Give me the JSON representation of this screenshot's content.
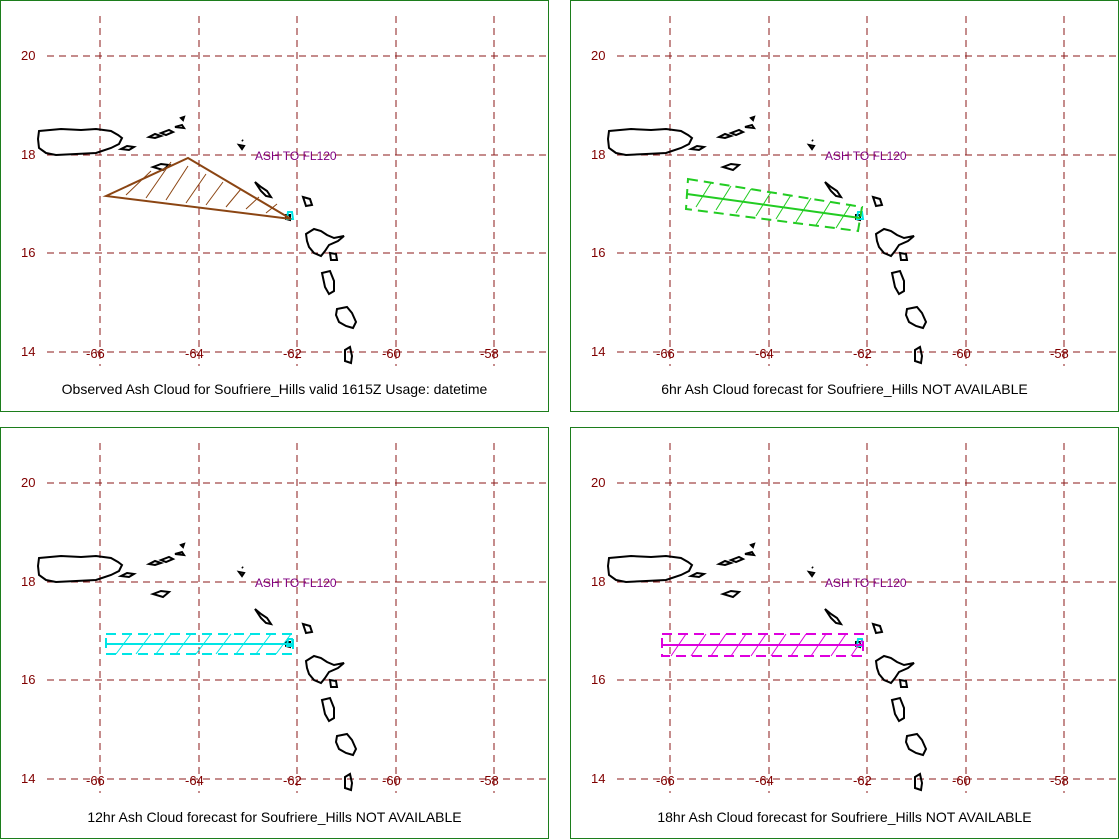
{
  "latitudes": [
    "20",
    "18",
    "16",
    "14"
  ],
  "longitudes": [
    "-66",
    "-64",
    "-62",
    "-60",
    "-58"
  ],
  "advisory_label": "ASH TO FL120",
  "colors": {
    "border": "#1c7d1c",
    "grid": "#8b1a1a",
    "coast": "#000000",
    "observed": "#8b4513",
    "fc6": "#22cc22",
    "fc12": "#00e5e5",
    "fc18": "#dd00dd",
    "advisory": "#800080"
  },
  "panels": [
    {
      "id": "observed",
      "caption": "Observed Ash Cloud for Soufriere_Hills valid 1615Z Usage: datetime"
    },
    {
      "id": "fc6",
      "caption": "6hr Ash Cloud forecast for Soufriere_Hills NOT AVAILABLE"
    },
    {
      "id": "fc12",
      "caption": "12hr Ash Cloud forecast for Soufriere_Hills NOT AVAILABLE"
    },
    {
      "id": "fc18",
      "caption": "18hr Ash Cloud forecast for Soufriere_Hills NOT AVAILABLE"
    }
  ]
}
